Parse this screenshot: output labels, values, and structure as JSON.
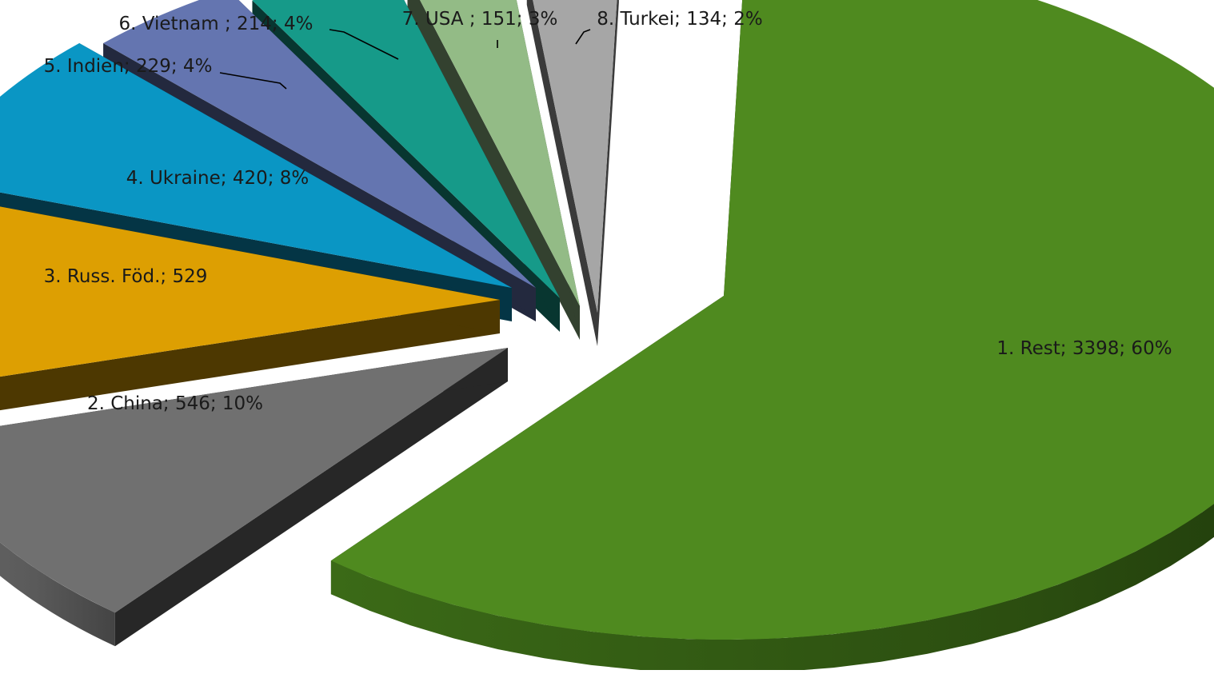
{
  "chart_data": {
    "type": "pie",
    "style": "3d-exploded",
    "title": "",
    "legend": "none",
    "slices": [
      {
        "category": "1. Rest",
        "value": 3398,
        "percent_label": "60%",
        "label": "1. Rest; 3398; 60%",
        "color": "#4f8a1f"
      },
      {
        "category": "2. China",
        "value": 546,
        "percent_label": "10%",
        "label": "2. China; 546; 10%",
        "color": "#707070"
      },
      {
        "category": "3. Russ. Föd.",
        "value": 529,
        "percent_label": "",
        "label": "3. Russ. Föd.; 529",
        "color": "#dd9f02"
      },
      {
        "category": "4. Ukraine",
        "value": 420,
        "percent_label": "8%",
        "label": "4. Ukraine; 420; 8%",
        "color": "#0a96c4"
      },
      {
        "category": "5. Indien",
        "value": 229,
        "percent_label": "4%",
        "label": "5. Indien; 229; 4%",
        "color": "#6475b0"
      },
      {
        "category": "6. Vietnam",
        "value": 214,
        "percent_label": "4%",
        "label": "6. Vietnam ; 214; 4%",
        "color": "#169a89"
      },
      {
        "category": "7. USA",
        "value": 151,
        "percent_label": "3%",
        "label": "7. USA ; 151; 3%",
        "color": "#93bb86"
      },
      {
        "category": "8. Turkei",
        "value": 134,
        "percent_label": "2%",
        "label": "8. Turkei; 134; 2%",
        "color": "#a6a6a6"
      }
    ]
  }
}
